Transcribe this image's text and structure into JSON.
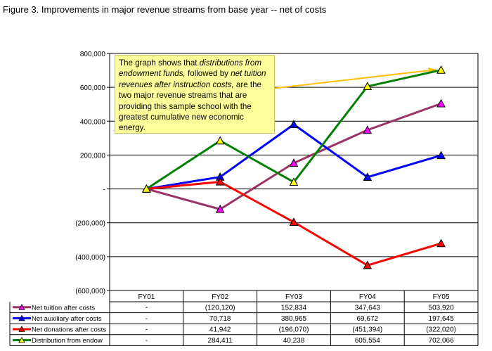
{
  "figure": {
    "title": "Figure 3. Improvements in major revenue streams from base year -- net of costs"
  },
  "callout": {
    "p1": "The graph shows that ",
    "p2": "distributions from endowment funds,",
    "p3": " followed by ",
    "p4": "net tuition revenues after instruction costs,",
    "p5": " are the two major revenue streams that are providing this sample school with the greatest cumulative new economic energy."
  },
  "chart_data": {
    "type": "line",
    "title": "",
    "xlabel": "",
    "ylabel": "",
    "categories": [
      "FY01",
      "FY02",
      "FY03",
      "FY04",
      "FY05"
    ],
    "ylim": [
      -600000,
      800000
    ],
    "yticks": [
      {
        "value": 800000,
        "label": "800,000"
      },
      {
        "value": 600000,
        "label": "600,000"
      },
      {
        "value": 400000,
        "label": "400,000"
      },
      {
        "value": 200000,
        "label": "200,000"
      },
      {
        "value": 0,
        "label": "-"
      },
      {
        "value": -200000,
        "label": "(200,000)"
      },
      {
        "value": -400000,
        "label": "(400,000)"
      },
      {
        "value": -600000,
        "label": "(600,000)"
      }
    ],
    "grid": true,
    "legend": "data-table-left",
    "series": [
      {
        "name": "Net tuition after costs",
        "color": "#993366",
        "marker": "#ff00ff",
        "values": [
          0,
          -120120,
          152834,
          347643,
          503920
        ],
        "labels": [
          "-",
          "(120,120)",
          "152,834",
          "347,643",
          "503,920"
        ]
      },
      {
        "name": "Net auxiliary after costs",
        "color": "#0000ff",
        "marker": "#0000ff",
        "values": [
          0,
          70718,
          380965,
          69672,
          197645
        ],
        "labels": [
          "-",
          "70,718",
          "380,965",
          "69,672",
          "197,645"
        ]
      },
      {
        "name": "Net donations after costs",
        "color": "#ff0000",
        "marker": "#ff0000",
        "values": [
          0,
          41942,
          -196070,
          -451394,
          -322020
        ],
        "labels": [
          "-",
          "41,942",
          "(196,070)",
          "(451,394)",
          "(322,020)"
        ]
      },
      {
        "name": "Distribution from endow",
        "color": "#008000",
        "marker": "#ffff00",
        "values": [
          0,
          284411,
          40238,
          605554,
          702066
        ],
        "labels": [
          "-",
          "284,411",
          "40,238",
          "605,554",
          "702,066"
        ]
      }
    ],
    "annotation_arrow": {
      "to_category": "FY05",
      "to_value": 700000,
      "color": "#ffc000"
    }
  }
}
